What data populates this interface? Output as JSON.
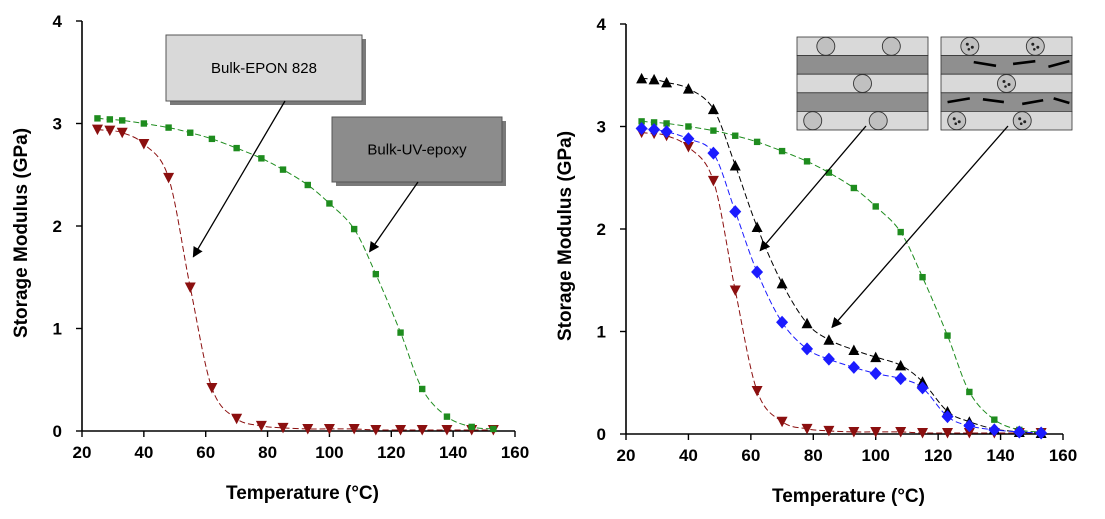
{
  "colors": {
    "bulk_epon": "#8b0f0f",
    "bulk_uv": "#1e8c1e",
    "blue_series": "#1b1bff",
    "black_series": "#000000",
    "callout_light": "#d9d9d9",
    "callout_dark": "#8c8c8c"
  },
  "chart_data": [
    {
      "type": "scatter",
      "title": "",
      "xlabel": "Temperature (°C)",
      "ylabel": "Storage Modulus (GPa)",
      "xlim": [
        20,
        160
      ],
      "ylim": [
        0,
        4
      ],
      "xticks": [
        "20",
        "40",
        "60",
        "80",
        "100",
        "120",
        "140",
        "160"
      ],
      "yticks": [
        "0",
        "1",
        "2",
        "3",
        "4"
      ],
      "annotations": [
        "Bulk-EPON 828",
        "Bulk-UV-epoxy"
      ],
      "series": [
        {
          "marker": "triangle-down",
          "color": "#8b0f0f",
          "x": [
            25,
            29,
            33,
            40,
            48,
            55,
            62,
            70,
            78,
            85,
            93,
            100,
            108,
            115,
            123,
            130,
            138,
            146,
            153
          ],
          "y": [
            2.94,
            2.93,
            2.91,
            2.8,
            2.47,
            1.4,
            0.42,
            0.12,
            0.05,
            0.03,
            0.02,
            0.02,
            0.02,
            0.01,
            0.01,
            0.01,
            0.01,
            0.01,
            0.01
          ]
        },
        {
          "marker": "square",
          "color": "#1e8c1e",
          "x": [
            25,
            29,
            33,
            40,
            48,
            55,
            62,
            70,
            78,
            85,
            93,
            100,
            108,
            115,
            123,
            130,
            138,
            146,
            153
          ],
          "y": [
            3.05,
            3.04,
            3.03,
            3.0,
            2.96,
            2.91,
            2.85,
            2.76,
            2.66,
            2.55,
            2.4,
            2.22,
            1.97,
            1.53,
            0.96,
            0.41,
            0.14,
            0.04,
            0.02
          ]
        }
      ]
    },
    {
      "type": "scatter",
      "title": "",
      "xlabel": "Temperature (°C)",
      "ylabel": "Storage Modulus (GPa)",
      "xlim": [
        20,
        160
      ],
      "ylim": [
        0,
        4
      ],
      "xticks": [
        "20",
        "40",
        "60",
        "80",
        "100",
        "120",
        "140",
        "160"
      ],
      "yticks": [
        "0",
        "1",
        "2",
        "3",
        "4"
      ],
      "series": [
        {
          "marker": "triangle-down",
          "color": "#8b0f0f",
          "x": [
            25,
            29,
            33,
            40,
            48,
            55,
            62,
            70,
            78,
            85,
            93,
            100,
            108,
            115,
            123,
            130,
            138,
            146,
            153
          ],
          "y": [
            2.94,
            2.93,
            2.91,
            2.8,
            2.47,
            1.4,
            0.42,
            0.12,
            0.05,
            0.03,
            0.02,
            0.02,
            0.02,
            0.01,
            0.01,
            0.01,
            0.01,
            0.01,
            0.01
          ]
        },
        {
          "marker": "square",
          "color": "#1e8c1e",
          "x": [
            25,
            29,
            33,
            40,
            48,
            55,
            62,
            70,
            78,
            85,
            93,
            100,
            108,
            115,
            123,
            130,
            138,
            146,
            153
          ],
          "y": [
            3.05,
            3.04,
            3.03,
            3.0,
            2.96,
            2.91,
            2.85,
            2.76,
            2.66,
            2.55,
            2.4,
            2.22,
            1.97,
            1.53,
            0.96,
            0.41,
            0.14,
            0.04,
            0.02
          ]
        },
        {
          "marker": "triangle-up",
          "color": "#000000",
          "x": [
            25,
            29,
            33,
            40,
            48,
            55,
            62,
            70,
            78,
            85,
            93,
            100,
            108,
            115,
            123,
            130,
            138,
            146,
            153
          ],
          "y": [
            3.47,
            3.46,
            3.43,
            3.37,
            3.17,
            2.62,
            2.02,
            1.47,
            1.08,
            0.92,
            0.82,
            0.75,
            0.67,
            0.51,
            0.22,
            0.12,
            0.05,
            0.02,
            0.01
          ]
        },
        {
          "marker": "diamond",
          "color": "#1b1bff",
          "x": [
            25,
            29,
            33,
            40,
            48,
            55,
            62,
            70,
            78,
            85,
            93,
            100,
            108,
            115,
            123,
            130,
            138,
            146,
            153
          ],
          "y": [
            2.98,
            2.97,
            2.95,
            2.88,
            2.74,
            2.17,
            1.58,
            1.09,
            0.83,
            0.73,
            0.65,
            0.59,
            0.54,
            0.45,
            0.17,
            0.08,
            0.04,
            0.02,
            0.01
          ]
        }
      ]
    }
  ]
}
